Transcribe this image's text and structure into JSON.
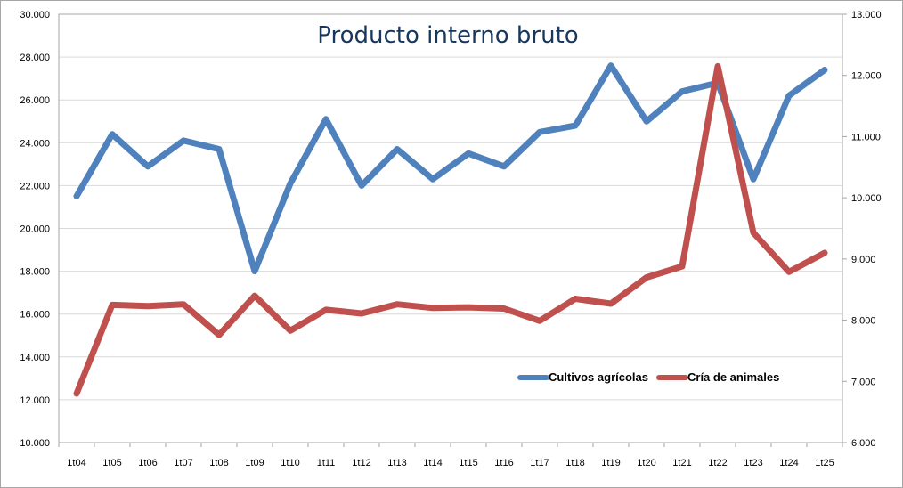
{
  "chart_data": {
    "type": "line",
    "title": "Producto interno bruto",
    "categories": [
      "1t04",
      "1t05",
      "1t06",
      "1t07",
      "1t08",
      "1t09",
      "1t10",
      "1t11",
      "1t12",
      "1t13",
      "1t14",
      "1t15",
      "1t16",
      "1t17",
      "1t18",
      "1t19",
      "1t20",
      "1t21",
      "1t22",
      "1t23",
      "1t24",
      "1t25"
    ],
    "y_left": {
      "min": 10000,
      "max": 30000,
      "step": 2000,
      "ticks": [
        "10.000",
        "12.000",
        "14.000",
        "16.000",
        "18.000",
        "20.000",
        "22.000",
        "24.000",
        "26.000",
        "28.000",
        "30.000"
      ]
    },
    "y_right": {
      "min": 6000,
      "max": 13000,
      "step": 1000,
      "ticks": [
        "6.000",
        "7.000",
        "8.000",
        "9.000",
        "10.000",
        "11.000",
        "12.000",
        "13.000"
      ]
    },
    "grid": true,
    "legend_position": "bottom-right",
    "series": [
      {
        "name": "Cultivos agrícolas",
        "axis": "left",
        "color": "#4f81bd",
        "values": [
          21500,
          24400,
          22900,
          24100,
          23700,
          18000,
          22100,
          25100,
          22000,
          23700,
          22300,
          23500,
          22900,
          24500,
          24800,
          27600,
          25000,
          26400,
          26800,
          22300,
          26200,
          27400
        ]
      },
      {
        "name": "Cría de animales",
        "axis": "right",
        "color": "#c0504d",
        "values": [
          6800,
          8250,
          8230,
          8260,
          7760,
          8400,
          7830,
          8170,
          8110,
          8260,
          8200,
          8210,
          8190,
          7990,
          8350,
          8270,
          8700,
          8880,
          12150,
          9430,
          8790,
          9100
        ]
      }
    ]
  }
}
